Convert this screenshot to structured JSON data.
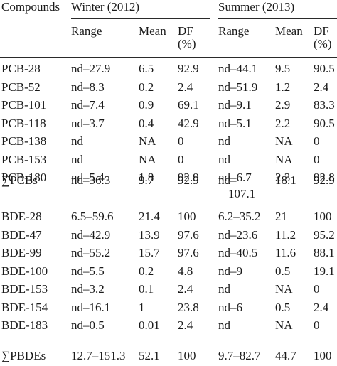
{
  "header": {
    "compounds": "Compounds",
    "winter": "Winter (2012)",
    "summer": "Summer (2013)",
    "range": "Range",
    "mean": "Mean",
    "df_line1": "DF",
    "df_line2": "(%)"
  },
  "rows": [
    {
      "c": "PCB-28",
      "wr": "nd–27.9",
      "wm": "6.5",
      "wd": "92.9",
      "sr": "nd–44.1",
      "sm": "9.5",
      "sd": "90.5"
    },
    {
      "c": "PCB-52",
      "wr": "nd–8.3",
      "wm": "0.2",
      "wd": "2.4",
      "sr": "nd–51.9",
      "sm": "1.2",
      "sd": "2.4"
    },
    {
      "c": "PCB-101",
      "wr": "nd–7.4",
      "wm": "0.9",
      "wd": "69.1",
      "sr": "nd–9.1",
      "sm": "2.9",
      "sd": "83.3"
    },
    {
      "c": "PCB-118",
      "wr": "nd–3.7",
      "wm": "0.4",
      "wd": "42.9",
      "sr": "nd–5.1",
      "sm": "2.2",
      "sd": "90.5"
    },
    {
      "c": "PCB-138",
      "wr": "nd",
      "wm": "NA",
      "wd": "0",
      "sr": "nd",
      "sm": "NA",
      "sd": "0"
    },
    {
      "c": "PCB-153",
      "wr": "nd",
      "wm": "NA",
      "wd": "0",
      "sr": "nd",
      "sm": "NA",
      "sd": "0"
    },
    {
      "c": "PCB-180",
      "wr": "nd–5.4",
      "wm": "1.8",
      "wd": "92.9",
      "sr": "nd–6.7",
      "sm": "2.3",
      "sd": "92.8"
    }
  ],
  "sum_pcbs": {
    "sigma": "∑",
    "c": "PCBs",
    "wr": "nd–36.3",
    "wm": "9.7",
    "wd": "92.9",
    "sr_line1": "nd–",
    "sr_line2": "107.1",
    "sm": "18.1",
    "sd": "92.9"
  },
  "rows2": [
    {
      "c": "BDE-28",
      "wr": "6.5–59.6",
      "wm": "21.4",
      "wd": "100",
      "sr": "6.2–35.2",
      "sm": "21",
      "sd": "100"
    },
    {
      "c": "BDE-47",
      "wr": "nd–42.9",
      "wm": "13.9",
      "wd": "97.6",
      "sr": "nd–23.6",
      "sm": "11.2",
      "sd": "95.2"
    },
    {
      "c": "BDE-99",
      "wr": "nd–55.2",
      "wm": "15.7",
      "wd": "97.6",
      "sr": "nd–40.5",
      "sm": "11.6",
      "sd": "88.1"
    },
    {
      "c": "BDE-100",
      "wr": "nd–5.5",
      "wm": "0.2",
      "wd": "4.8",
      "sr": "nd–9",
      "sm": "0.5",
      "sd": "19.1"
    },
    {
      "c": "BDE-153",
      "wr": "nd–3.2",
      "wm": "0.1",
      "wd": "2.4",
      "sr": "nd",
      "sm": "NA",
      "sd": "0"
    },
    {
      "c": "BDE-154",
      "wr": "nd–16.1",
      "wm": "1",
      "wd": "23.8",
      "sr": "nd–6",
      "sm": "0.5",
      "sd": "2.4"
    },
    {
      "c": "BDE-183",
      "wr": "nd–0.5",
      "wm": "0.01",
      "wd": "2.4",
      "sr": "nd",
      "sm": "NA",
      "sd": "0"
    }
  ],
  "sum_pbdes": {
    "sigma": "∑",
    "c": "PBDEs",
    "wr": "12.7–151.3",
    "wm": "52.1",
    "wd": "100",
    "sr": "9.7–82.7",
    "sm": "44.7",
    "sd": "100"
  }
}
